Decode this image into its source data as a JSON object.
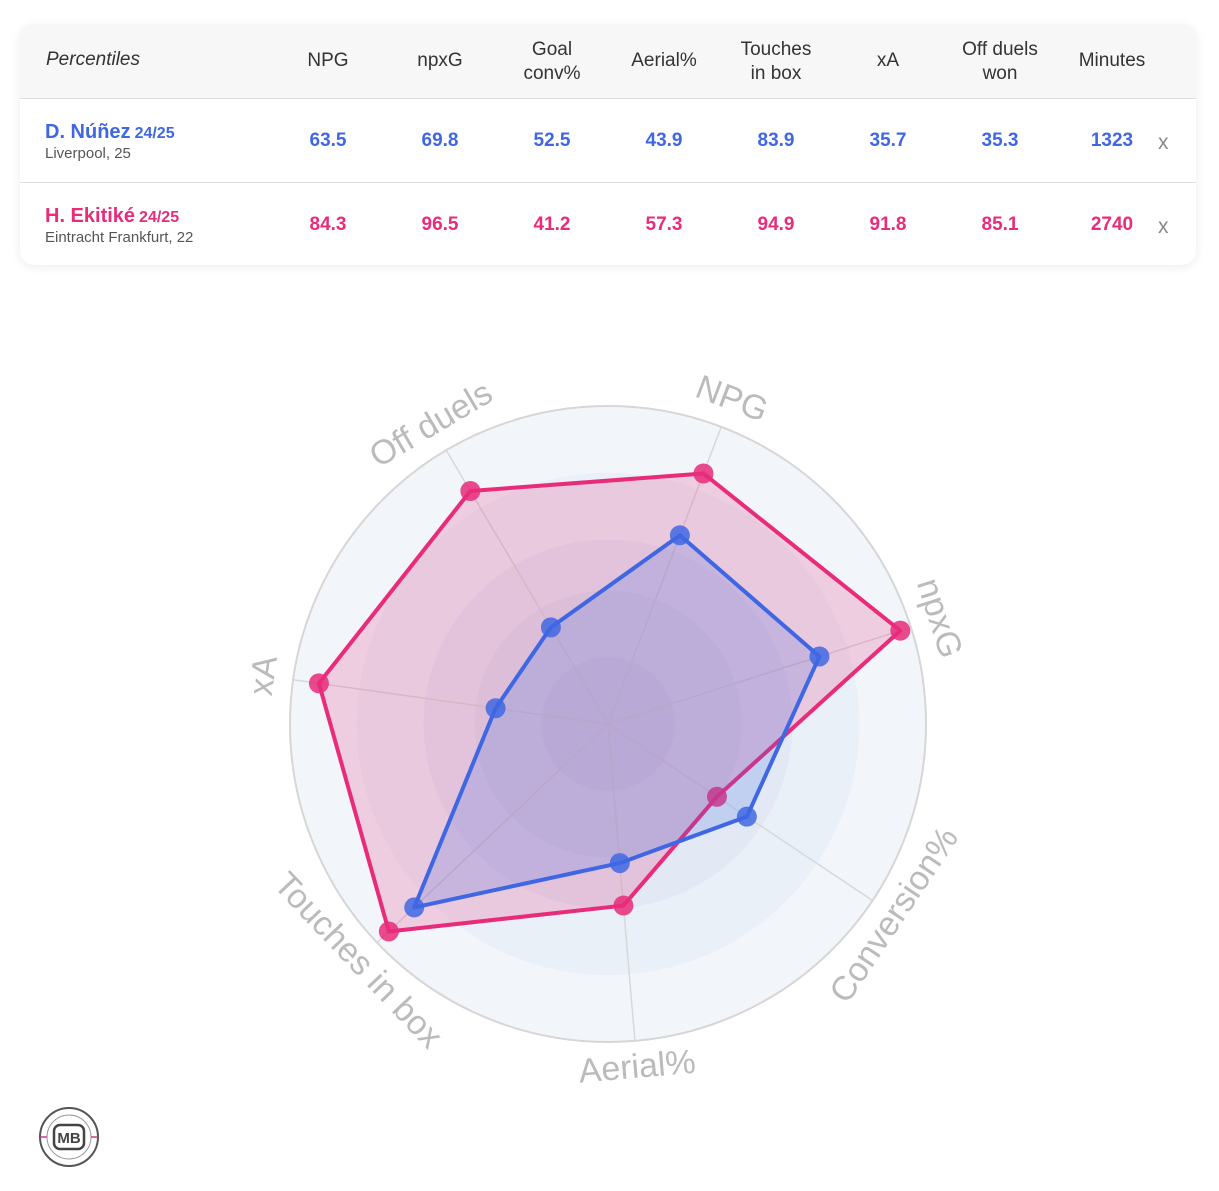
{
  "table": {
    "corner_label": "Percentiles",
    "columns": [
      "NPG",
      "npxG",
      "Goal\nconv%",
      "Aerial%",
      "Touches\nin box",
      "xA",
      "Off duels\nwon",
      "Minutes"
    ],
    "remove_label": "x",
    "rows": [
      {
        "name": "D. Núñez",
        "season": "24/25",
        "meta": "Liverpool, 25",
        "color": "#3f67e3",
        "values": [
          "63.5",
          "69.8",
          "52.5",
          "43.9",
          "83.9",
          "35.7",
          "35.3",
          "1323"
        ]
      },
      {
        "name": "H. Ekitiké",
        "season": "24/25",
        "meta": "Eintracht Frankfurt, 22",
        "color": "#e82c7a",
        "values": [
          "84.3",
          "96.5",
          "41.2",
          "57.3",
          "94.9",
          "91.8",
          "85.1",
          "2740"
        ]
      }
    ]
  },
  "chart_data": {
    "type": "radar",
    "axes": [
      "xA",
      "Off duels",
      "NPG",
      "npxG",
      "Conversion%",
      "Aerial%",
      "Touches in box"
    ],
    "range": [
      0,
      100
    ],
    "series": [
      {
        "name": "H. Ekitiké",
        "color": "#e82c7a",
        "values": [
          91.8,
          85.1,
          84.3,
          96.5,
          41.2,
          57.3,
          94.9
        ]
      },
      {
        "name": "D. Núñez",
        "color": "#3f67e3",
        "values": [
          35.7,
          35.3,
          63.5,
          69.8,
          52.5,
          43.9,
          83.9
        ]
      }
    ]
  },
  "logo_text": "MB"
}
